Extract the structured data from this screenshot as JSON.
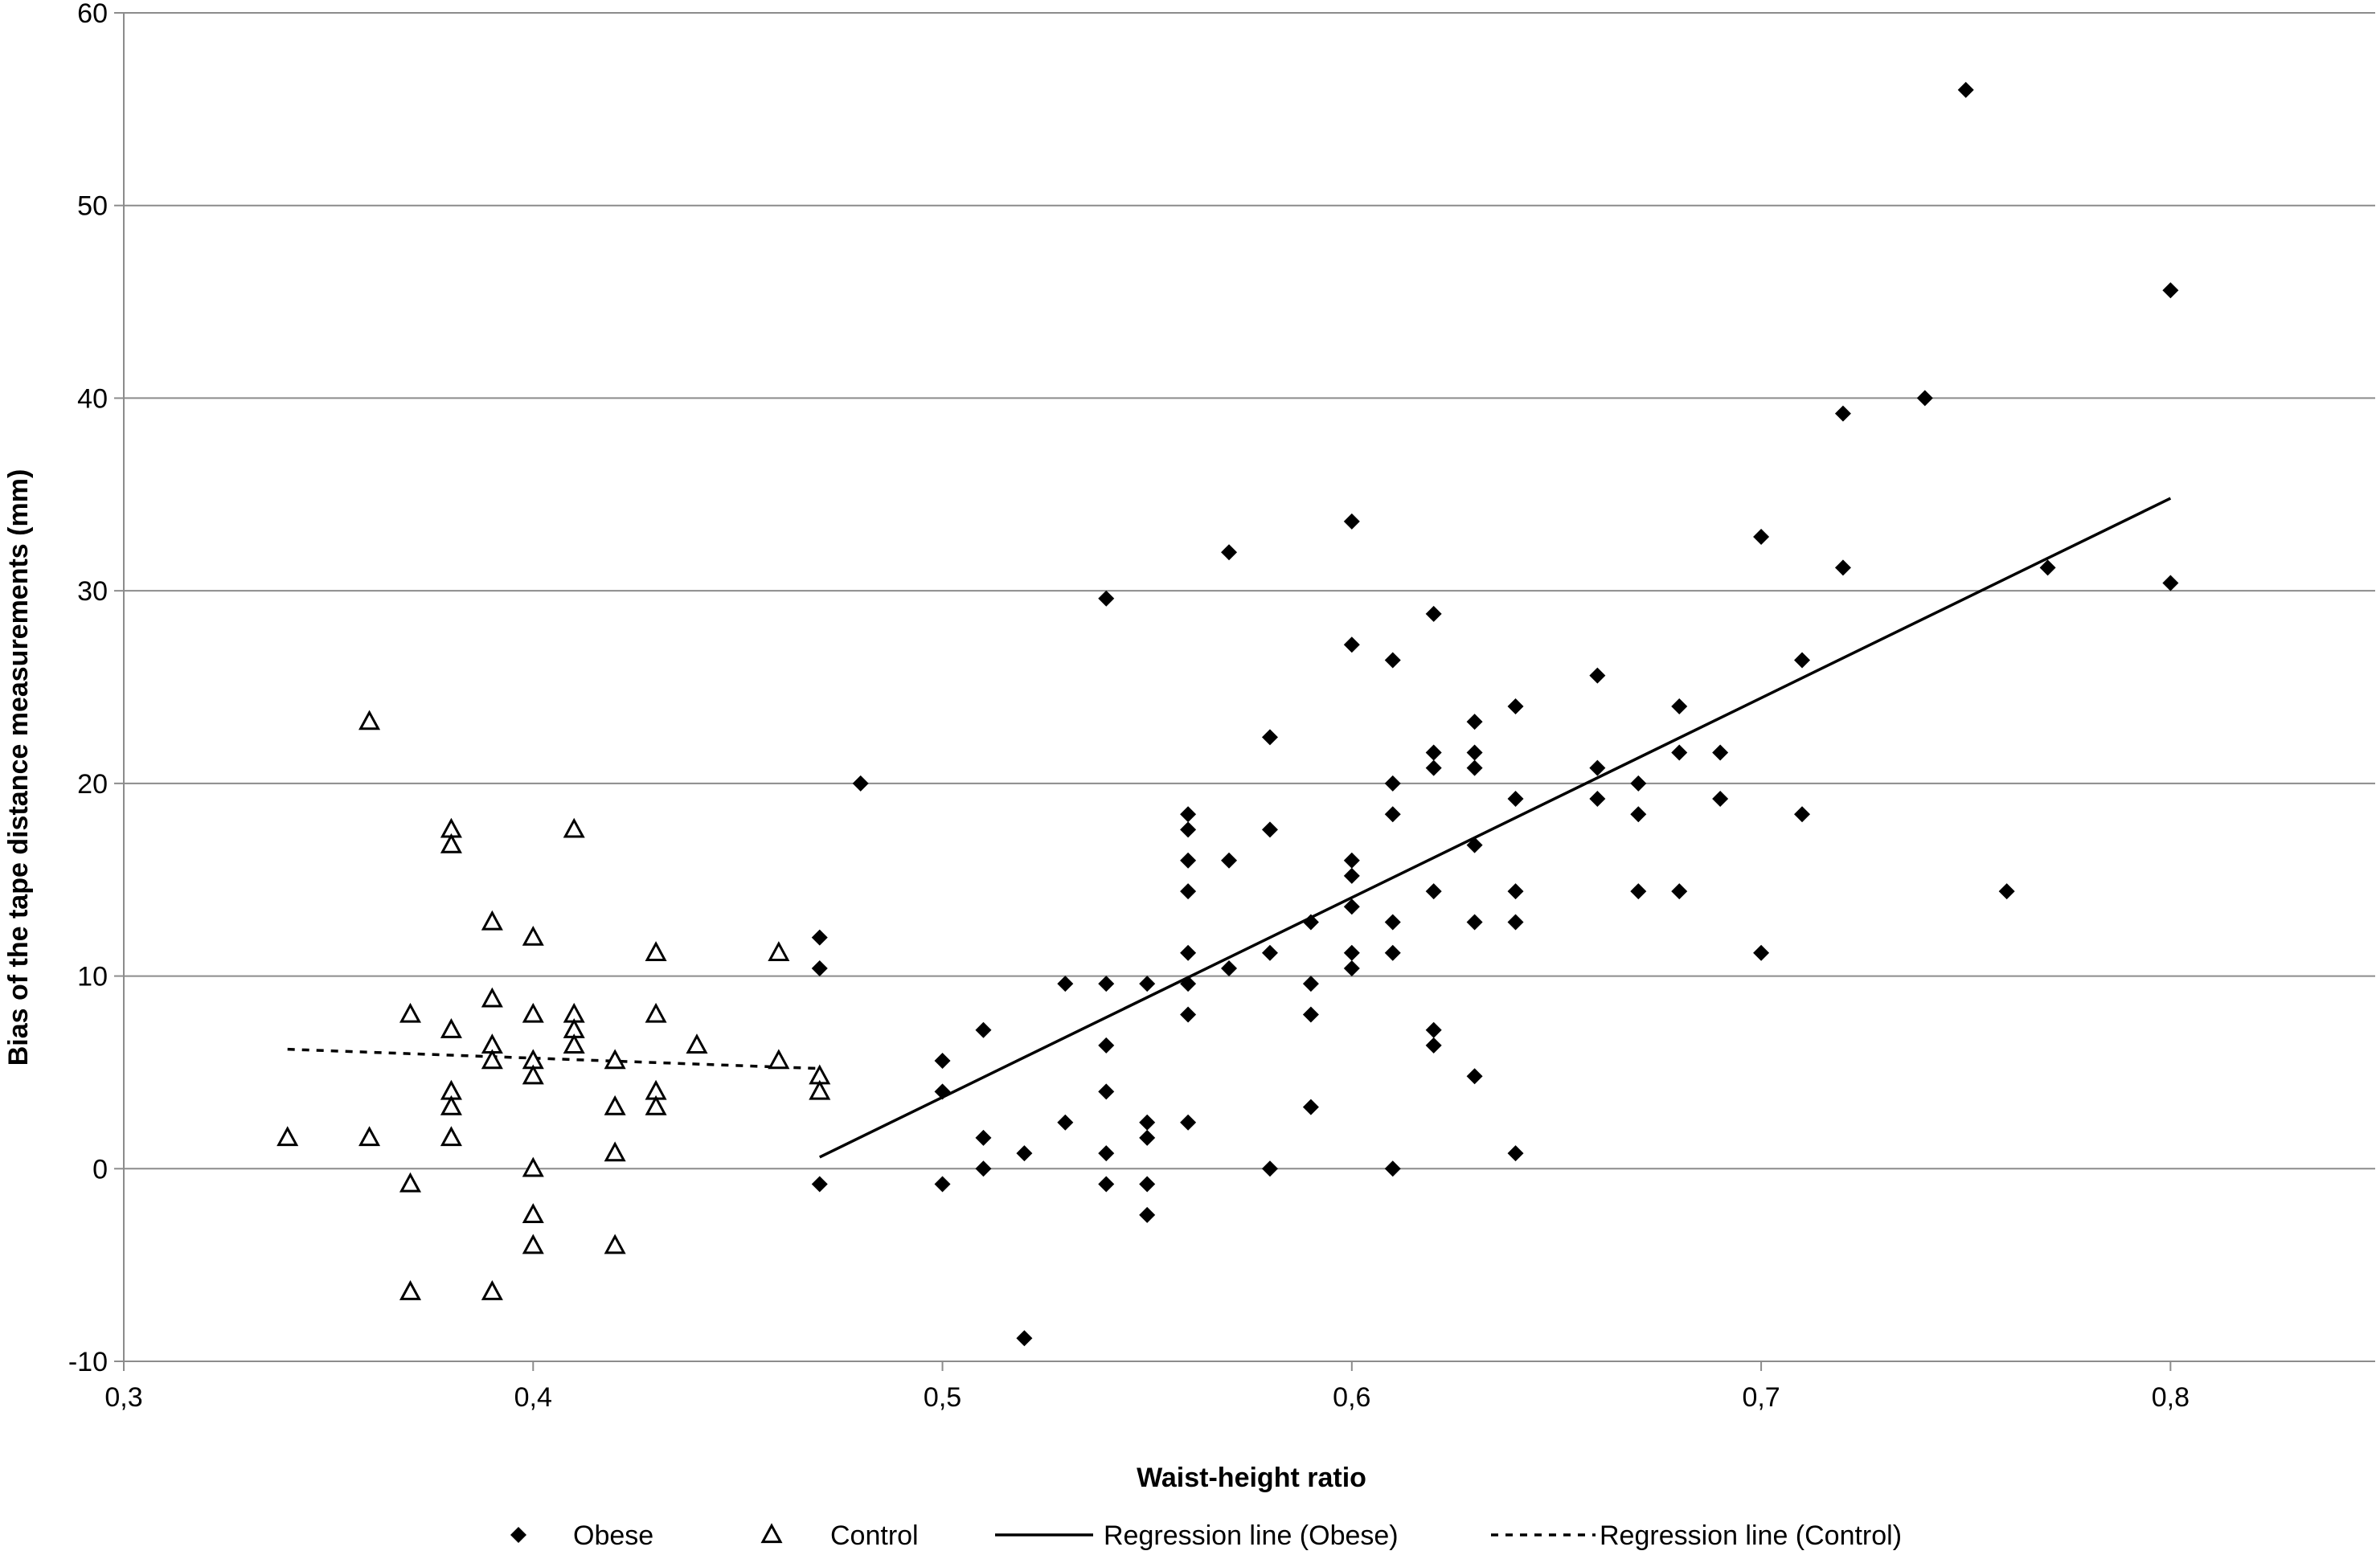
{
  "chart_data": {
    "type": "scatter",
    "xlabel": "Waist-height ratio",
    "ylabel": "Bias of the tape distance measurements  (mm)",
    "xlim": [
      0.3,
      0.85
    ],
    "ylim": [
      -10,
      60
    ],
    "x_ticks": [
      "0,3",
      "0,4",
      "0,5",
      "0,6",
      "0,7",
      "0,8"
    ],
    "x_tick_values": [
      0.3,
      0.4,
      0.5,
      0.6,
      0.7,
      0.8
    ],
    "y_ticks": [
      "-10",
      "0",
      "10",
      "20",
      "30",
      "40",
      "50",
      "60"
    ],
    "y_tick_values": [
      -10,
      0,
      10,
      20,
      30,
      40,
      50,
      60
    ],
    "grid": "horizontal",
    "legend_position": "bottom",
    "series": [
      {
        "name": "Obese",
        "marker": "diamond",
        "color": "#000000",
        "points": [
          [
            0.47,
            12.0
          ],
          [
            0.47,
            10.4
          ],
          [
            0.47,
            -0.8
          ],
          [
            0.48,
            20.0
          ],
          [
            0.5,
            5.6
          ],
          [
            0.5,
            4.0
          ],
          [
            0.5,
            -0.8
          ],
          [
            0.51,
            7.2
          ],
          [
            0.51,
            1.6
          ],
          [
            0.51,
            0.0
          ],
          [
            0.52,
            0.8
          ],
          [
            0.52,
            -8.8
          ],
          [
            0.53,
            9.6
          ],
          [
            0.53,
            2.4
          ],
          [
            0.54,
            29.6
          ],
          [
            0.54,
            9.6
          ],
          [
            0.54,
            6.4
          ],
          [
            0.54,
            4.0
          ],
          [
            0.54,
            0.8
          ],
          [
            0.54,
            -0.8
          ],
          [
            0.55,
            9.6
          ],
          [
            0.55,
            2.4
          ],
          [
            0.55,
            1.6
          ],
          [
            0.55,
            -0.8
          ],
          [
            0.55,
            -2.4
          ],
          [
            0.56,
            18.4
          ],
          [
            0.56,
            17.6
          ],
          [
            0.56,
            16.0
          ],
          [
            0.56,
            14.4
          ],
          [
            0.56,
            11.2
          ],
          [
            0.56,
            9.6
          ],
          [
            0.56,
            8.0
          ],
          [
            0.56,
            2.4
          ],
          [
            0.57,
            32.0
          ],
          [
            0.57,
            16.0
          ],
          [
            0.57,
            10.4
          ],
          [
            0.58,
            22.4
          ],
          [
            0.58,
            17.6
          ],
          [
            0.58,
            11.2
          ],
          [
            0.58,
            0.0
          ],
          [
            0.59,
            12.8
          ],
          [
            0.59,
            9.6
          ],
          [
            0.59,
            8.0
          ],
          [
            0.59,
            3.2
          ],
          [
            0.6,
            33.6
          ],
          [
            0.6,
            27.2
          ],
          [
            0.6,
            16.0
          ],
          [
            0.6,
            15.2
          ],
          [
            0.6,
            13.6
          ],
          [
            0.6,
            11.2
          ],
          [
            0.6,
            10.4
          ],
          [
            0.61,
            26.4
          ],
          [
            0.61,
            20.0
          ],
          [
            0.61,
            18.4
          ],
          [
            0.61,
            12.8
          ],
          [
            0.61,
            11.2
          ],
          [
            0.61,
            0.0
          ],
          [
            0.62,
            28.8
          ],
          [
            0.62,
            21.6
          ],
          [
            0.62,
            20.8
          ],
          [
            0.62,
            14.4
          ],
          [
            0.62,
            7.2
          ],
          [
            0.62,
            6.4
          ],
          [
            0.63,
            23.2
          ],
          [
            0.63,
            21.6
          ],
          [
            0.63,
            20.8
          ],
          [
            0.63,
            16.8
          ],
          [
            0.63,
            12.8
          ],
          [
            0.63,
            4.8
          ],
          [
            0.64,
            24.0
          ],
          [
            0.64,
            19.2
          ],
          [
            0.64,
            14.4
          ],
          [
            0.64,
            12.8
          ],
          [
            0.64,
            0.8
          ],
          [
            0.66,
            25.6
          ],
          [
            0.66,
            20.8
          ],
          [
            0.66,
            19.2
          ],
          [
            0.67,
            20.0
          ],
          [
            0.67,
            18.4
          ],
          [
            0.67,
            14.4
          ],
          [
            0.68,
            24.0
          ],
          [
            0.68,
            21.6
          ],
          [
            0.68,
            14.4
          ],
          [
            0.69,
            21.6
          ],
          [
            0.69,
            19.2
          ],
          [
            0.7,
            32.8
          ],
          [
            0.7,
            11.2
          ],
          [
            0.71,
            26.4
          ],
          [
            0.71,
            18.4
          ],
          [
            0.72,
            39.2
          ],
          [
            0.72,
            31.2
          ],
          [
            0.74,
            40.0
          ],
          [
            0.75,
            56.0
          ],
          [
            0.76,
            14.4
          ],
          [
            0.77,
            31.2
          ],
          [
            0.8,
            45.6
          ],
          [
            0.8,
            30.4
          ]
        ]
      },
      {
        "name": "Control",
        "marker": "triangle",
        "color": "#000000",
        "points": [
          [
            0.34,
            1.6
          ],
          [
            0.36,
            23.2
          ],
          [
            0.36,
            1.6
          ],
          [
            0.37,
            8.0
          ],
          [
            0.37,
            -0.8
          ],
          [
            0.37,
            -6.4
          ],
          [
            0.38,
            17.6
          ],
          [
            0.38,
            16.8
          ],
          [
            0.38,
            7.2
          ],
          [
            0.38,
            4.0
          ],
          [
            0.38,
            3.2
          ],
          [
            0.38,
            1.6
          ],
          [
            0.39,
            12.8
          ],
          [
            0.39,
            8.8
          ],
          [
            0.39,
            6.4
          ],
          [
            0.39,
            5.6
          ],
          [
            0.39,
            -6.4
          ],
          [
            0.4,
            12.0
          ],
          [
            0.4,
            8.0
          ],
          [
            0.4,
            5.6
          ],
          [
            0.4,
            4.8
          ],
          [
            0.4,
            0.0
          ],
          [
            0.4,
            -2.4
          ],
          [
            0.4,
            -4.0
          ],
          [
            0.41,
            17.6
          ],
          [
            0.41,
            8.0
          ],
          [
            0.41,
            7.2
          ],
          [
            0.41,
            6.4
          ],
          [
            0.42,
            5.6
          ],
          [
            0.42,
            3.2
          ],
          [
            0.42,
            0.8
          ],
          [
            0.42,
            -4.0
          ],
          [
            0.43,
            11.2
          ],
          [
            0.43,
            8.0
          ],
          [
            0.43,
            4.0
          ],
          [
            0.43,
            3.2
          ],
          [
            0.44,
            6.4
          ],
          [
            0.46,
            11.2
          ],
          [
            0.46,
            5.6
          ],
          [
            0.47,
            4.8
          ],
          [
            0.47,
            4.0
          ]
        ]
      },
      {
        "name": "Regression line (Obese)",
        "line_style": "solid",
        "color": "#000000",
        "points": [
          [
            0.47,
            0.6
          ],
          [
            0.8,
            34.8
          ]
        ]
      },
      {
        "name": "Regression line (Control)",
        "line_style": "dashed",
        "color": "#000000",
        "points": [
          [
            0.34,
            6.2
          ],
          [
            0.47,
            5.2
          ]
        ]
      }
    ]
  }
}
